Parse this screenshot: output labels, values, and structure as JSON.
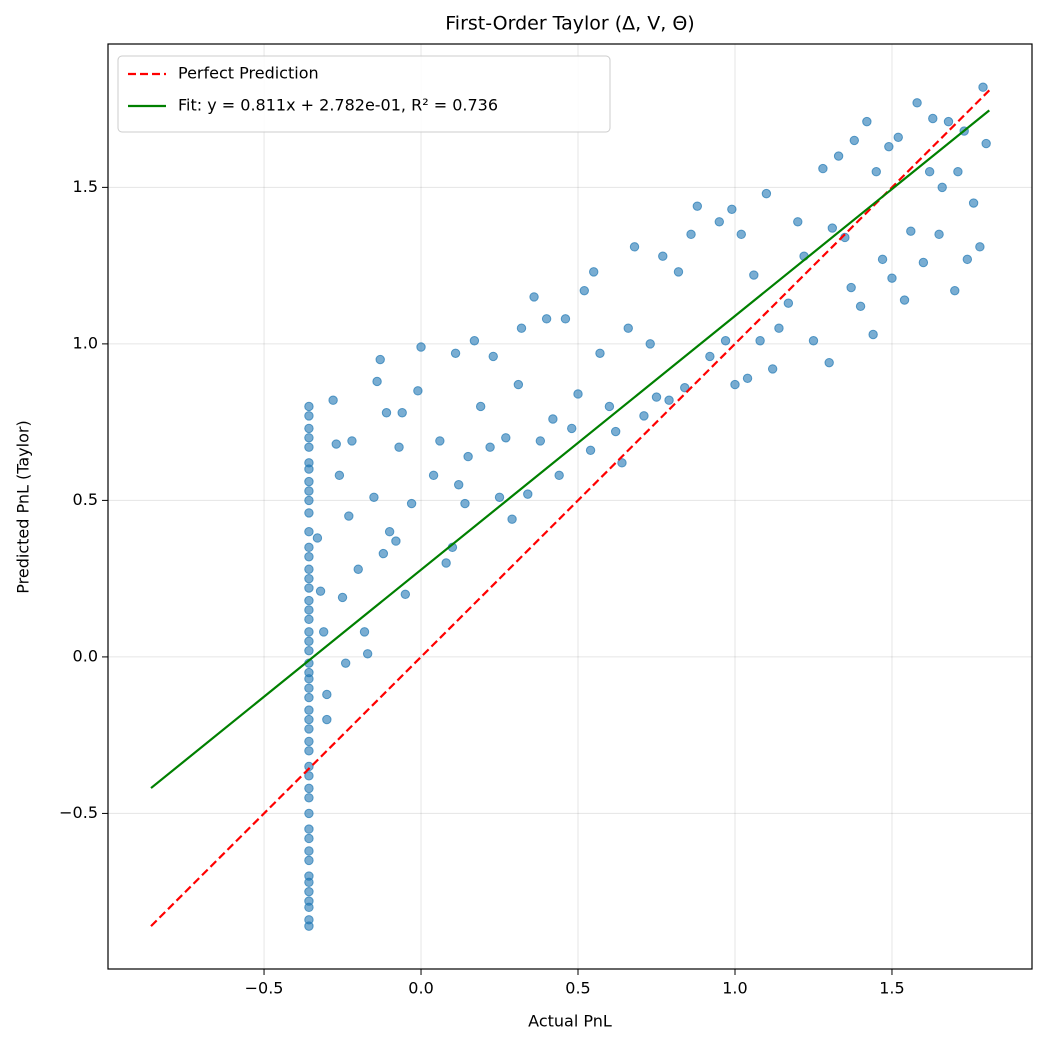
{
  "chart_data": {
    "type": "scatter",
    "title": "First-Order Taylor (Δ, V, Θ)",
    "x_label": "Actual PnL",
    "y_label": "Predicted PnL (Taylor)",
    "xlim": [
      -0.997,
      1.946
    ],
    "ylim": [
      -0.997,
      1.958
    ],
    "xticks": [
      {
        "value": -0.5,
        "label": "−0.5"
      },
      {
        "value": 0,
        "label": "0.0"
      },
      0.5,
      {
        "value": 1,
        "label": "1.0"
      },
      1.5
    ],
    "yticks": [
      {
        "value": -0.5,
        "label": "−0.5"
      },
      {
        "value": 0,
        "label": "0.0"
      },
      0.5,
      {
        "value": 1,
        "label": "1.0"
      },
      1.5
    ],
    "grid": true,
    "legend": "upper left",
    "points": {
      "color": "#1f77b4",
      "x": [
        -0.357,
        -0.357,
        -0.357,
        -0.357,
        -0.357,
        -0.357,
        -0.357,
        -0.357,
        -0.357,
        -0.357,
        -0.357,
        -0.357,
        -0.357,
        -0.357,
        -0.357,
        -0.357,
        -0.357,
        -0.357,
        -0.357,
        -0.357,
        -0.357,
        -0.357,
        -0.357,
        -0.357,
        -0.357,
        -0.357,
        -0.357,
        -0.357,
        -0.357,
        -0.357,
        -0.357,
        -0.357,
        -0.357,
        -0.357,
        -0.357,
        -0.357,
        -0.357,
        -0.357,
        -0.357,
        -0.357,
        -0.357,
        -0.357,
        -0.357,
        -0.357,
        -0.357,
        -0.357,
        -0.357,
        -0.357,
        -0.357,
        -0.33,
        -0.32,
        -0.31,
        -0.3,
        -0.3,
        -0.28,
        -0.27,
        -0.26,
        -0.25,
        -0.24,
        -0.23,
        -0.22,
        -0.2,
        -0.18,
        -0.17,
        -0.15,
        -0.14,
        -0.13,
        -0.12,
        -0.11,
        -0.1,
        -0.08,
        -0.07,
        -0.06,
        -0.05,
        -0.03,
        -0.01,
        0,
        0.04,
        0.06,
        0.08,
        0.1,
        0.11,
        0.12,
        0.14,
        0.15,
        0.17,
        0.19,
        0.22,
        0.23,
        0.25,
        0.27,
        0.29,
        0.31,
        0.32,
        0.34,
        0.36,
        0.38,
        0.4,
        0.42,
        0.44,
        0.46,
        0.48,
        0.5,
        0.52,
        0.54,
        0.55,
        0.57,
        0.6,
        0.62,
        0.64,
        0.66,
        0.68,
        0.71,
        0.73,
        0.75,
        0.77,
        0.79,
        0.82,
        0.84,
        0.86,
        0.88,
        0.92,
        0.95,
        0.97,
        0.99,
        1.0,
        1.02,
        1.04,
        1.06,
        1.08,
        1.1,
        1.12,
        1.14,
        1.17,
        1.2,
        1.22,
        1.25,
        1.28,
        1.3,
        1.31,
        1.33,
        1.35,
        1.37,
        1.38,
        1.4,
        1.42,
        1.44,
        1.45,
        1.47,
        1.49,
        1.5,
        1.52,
        1.54,
        1.56,
        1.58,
        1.6,
        1.62,
        1.63,
        1.65,
        1.66,
        1.68,
        1.7,
        1.71,
        1.73,
        1.74,
        1.76,
        1.78,
        1.79,
        1.8
      ],
      "values": [
        -0.86,
        -0.84,
        -0.8,
        -0.78,
        -0.75,
        -0.72,
        -0.7,
        -0.65,
        -0.62,
        -0.58,
        -0.55,
        -0.5,
        -0.45,
        -0.42,
        -0.38,
        -0.35,
        -0.3,
        -0.27,
        -0.23,
        -0.2,
        -0.17,
        -0.13,
        -0.1,
        -0.07,
        -0.05,
        -0.02,
        0.02,
        0.05,
        0.08,
        0.12,
        0.15,
        0.18,
        0.22,
        0.25,
        0.28,
        0.32,
        0.35,
        0.4,
        0.46,
        0.5,
        0.53,
        0.56,
        0.6,
        0.62,
        0.67,
        0.7,
        0.73,
        0.77,
        0.8,
        0.38,
        0.21,
        0.08,
        -0.12,
        -0.2,
        0.82,
        0.68,
        0.58,
        0.19,
        -0.02,
        0.45,
        0.69,
        0.28,
        0.08,
        0.01,
        0.51,
        0.88,
        0.95,
        0.33,
        0.78,
        0.4,
        0.37,
        0.67,
        0.78,
        0.2,
        0.49,
        0.85,
        0.99,
        0.58,
        0.69,
        0.3,
        0.35,
        0.97,
        0.55,
        0.49,
        0.64,
        1.01,
        0.8,
        0.67,
        0.96,
        0.51,
        0.7,
        0.44,
        0.87,
        1.05,
        0.52,
        1.15,
        0.69,
        1.08,
        0.76,
        0.58,
        1.08,
        0.73,
        0.84,
        1.17,
        0.66,
        1.23,
        0.97,
        0.8,
        0.72,
        0.62,
        1.05,
        1.31,
        0.77,
        1.0,
        0.83,
        1.28,
        0.82,
        1.23,
        0.86,
        1.35,
        1.44,
        0.96,
        1.39,
        1.01,
        1.43,
        0.87,
        1.35,
        0.89,
        1.22,
        1.01,
        1.48,
        0.92,
        1.05,
        1.13,
        1.39,
        1.28,
        1.01,
        1.56,
        0.94,
        1.37,
        1.6,
        1.34,
        1.18,
        1.65,
        1.12,
        1.71,
        1.03,
        1.55,
        1.27,
        1.63,
        1.21,
        1.66,
        1.14,
        1.36,
        1.77,
        1.26,
        1.55,
        1.72,
        1.35,
        1.5,
        1.71,
        1.17,
        1.55,
        1.68,
        1.27,
        1.45,
        1.31,
        1.82,
        1.64
      ]
    },
    "series": [
      {
        "name": "Perfect Prediction",
        "color": "#ff0000",
        "style": "dashed",
        "x": [
          -0.86,
          1.81
        ],
        "values": [
          -0.86,
          1.81
        ]
      },
      {
        "name": "Fit: y = 0.811x + 2.782e-01, R² = 0.736",
        "color": "#008000",
        "style": "solid",
        "x": [
          -0.86,
          1.81
        ],
        "values": [
          -0.419,
          1.746
        ]
      }
    ]
  }
}
